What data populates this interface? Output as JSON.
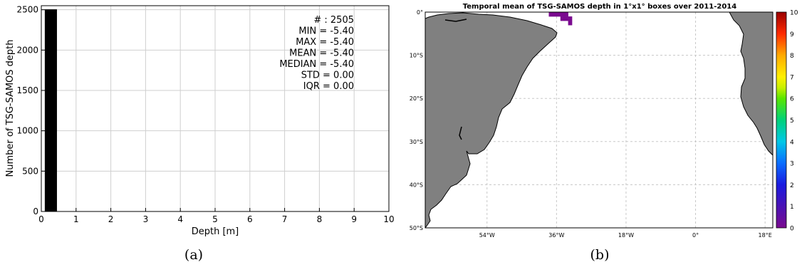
{
  "chart_data": [
    {
      "type": "bar",
      "panel_label": "(a)",
      "xlabel": "Depth [m]",
      "ylabel": "Number of TSG-SAMOS depth",
      "xlim": [
        0,
        10
      ],
      "ylim": [
        0,
        2550
      ],
      "xticks": [
        0,
        1,
        2,
        3,
        4,
        5,
        6,
        7,
        8,
        9,
        10
      ],
      "yticks": [
        0,
        500,
        1000,
        1500,
        2000,
        2500
      ],
      "grid": true,
      "bars": [
        {
          "x_start": 0.1,
          "x_end": 0.45,
          "value": 2505
        }
      ],
      "bar_color": "#000000",
      "stats": [
        "# : 2505",
        "MIN =  -5.40",
        "MAX =  -5.40",
        "MEAN = -5.40",
        "MEDIAN = -5.40",
        "STD = 0.00",
        "IQR = 0.00"
      ]
    },
    {
      "type": "heatmap",
      "panel_label": "(b)",
      "title": "Temporal mean of TSG-SAMOS depth in 1°x1° boxes over 2011-2014",
      "lon_range": [
        -70,
        20
      ],
      "lat_range": [
        -50,
        0
      ],
      "x_tick_labels": [
        "54°W",
        "36°W",
        "18°W",
        "0°",
        "18°E"
      ],
      "x_tick_values": [
        -54,
        -36,
        -18,
        0,
        18
      ],
      "y_tick_labels": [
        "0°",
        "10°S",
        "20°S",
        "30°S",
        "40°S",
        "50°S"
      ],
      "y_tick_values": [
        0,
        -10,
        -20,
        -30,
        -40,
        -50
      ],
      "grid": true,
      "colorbar": {
        "min": 0,
        "max": 10,
        "tick_labels": [
          "0",
          "1",
          "2",
          "3",
          "4",
          "5",
          "6",
          "7",
          "8",
          "9",
          "10"
        ],
        "colormap": "spectral (purple to dark red)"
      },
      "cells": [
        {
          "lon": -37.5,
          "lat": -0.5,
          "value": 0
        },
        {
          "lon": -36.5,
          "lat": -0.5,
          "value": 0
        },
        {
          "lon": -35.5,
          "lat": -0.5,
          "value": 0
        },
        {
          "lon": -34.5,
          "lat": -0.5,
          "value": 0
        },
        {
          "lon": -33.5,
          "lat": -0.5,
          "value": 0
        },
        {
          "lon": -34.5,
          "lat": -1.5,
          "value": 0
        },
        {
          "lon": -33.5,
          "lat": -1.5,
          "value": 0
        },
        {
          "lon": -32.5,
          "lat": -1.5,
          "value": 0
        },
        {
          "lon": -32.5,
          "lat": -2.5,
          "value": 0
        }
      ],
      "land_color": "#808080",
      "cell_color": "#7a0a8f"
    }
  ]
}
